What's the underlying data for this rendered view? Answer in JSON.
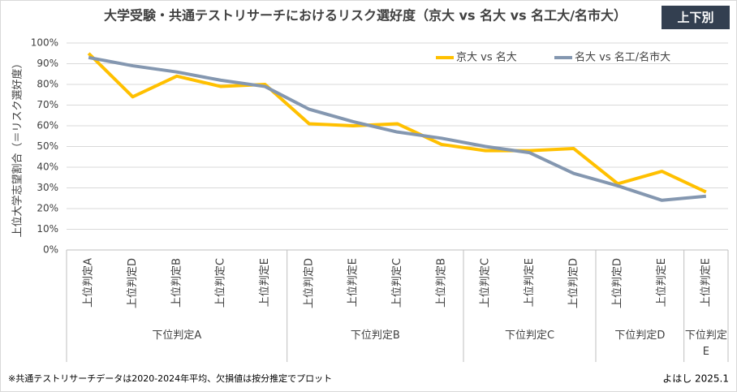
{
  "chart_data": {
    "type": "line",
    "title": "大学受験・共通テストリサーチにおけるリスク選好度（京大 vs 名大 vs 名工大/名市大）",
    "badge": "上下別",
    "y_label": "上位大学志望割合（＝リスク選好度）",
    "category_groups": [
      {
        "name": "下位判定A",
        "categories": [
          "上位判定A",
          "上位判定D",
          "上位判定B",
          "上位判定C",
          "上位判定E"
        ]
      },
      {
        "name": "下位判定B",
        "categories": [
          "上位判定D",
          "上位判定E",
          "上位判定C",
          "上位判定B"
        ]
      },
      {
        "name": "下位判定C",
        "categories": [
          "上位判定C",
          "上位判定E",
          "上位判定D"
        ]
      },
      {
        "name": "下位判定D",
        "categories": [
          "上位判定D",
          "上位判定E"
        ]
      },
      {
        "name": "下位判定E",
        "categories": [
          "上位判定E"
        ]
      }
    ],
    "series": [
      {
        "name": "京大 vs 名大",
        "color": "#ffc000",
        "values": [
          95,
          74,
          84,
          79,
          80,
          61,
          60,
          61,
          51,
          48,
          48,
          49,
          32,
          38,
          28
        ]
      },
      {
        "name": "名大 vs 名工/名市大",
        "color": "#8497b0",
        "values": [
          93,
          89,
          86,
          82,
          79,
          68,
          62,
          57,
          54,
          50,
          47,
          37,
          31,
          24,
          26
        ]
      }
    ],
    "ylim": [
      0,
      100
    ],
    "yticks": [
      {
        "value": 0,
        "label": "0%"
      },
      {
        "value": 10,
        "label": "10%"
      },
      {
        "value": 20,
        "label": "20%"
      },
      {
        "value": 30,
        "label": "30%"
      },
      {
        "value": 40,
        "label": "40%"
      },
      {
        "value": 50,
        "label": "50%"
      },
      {
        "value": 60,
        "label": "60%"
      },
      {
        "value": 70,
        "label": "70%"
      },
      {
        "value": 80,
        "label": "80%"
      },
      {
        "value": 90,
        "label": "90%"
      },
      {
        "value": 100,
        "label": "100%"
      }
    ],
    "grid": true,
    "legend": "top-right",
    "footnote": "※共通テストリサーチデータは2020-2024年平均、欠損値は按分推定でプロット",
    "credit": "よはし 2025.1"
  }
}
